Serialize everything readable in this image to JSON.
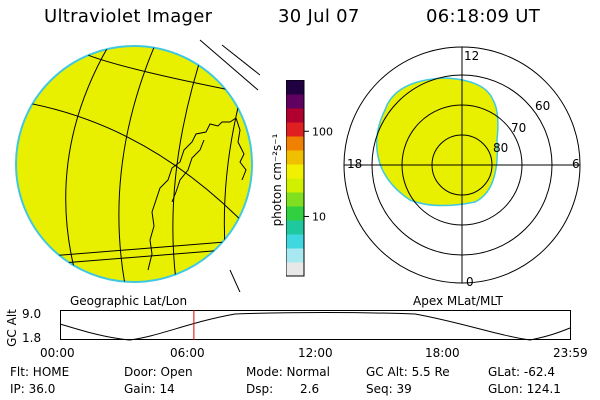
{
  "header": {
    "title": "Ultraviolet Imager",
    "date": "30 Jul 07",
    "time": "06:18:09 UT"
  },
  "geo_panel": {
    "label": "Geographic Lat/Lon",
    "fill_color": "#e8f000",
    "limb_color": "#40c8e0"
  },
  "colorbar": {
    "unit_label": "photon cm⁻²s⁻¹",
    "ticks": [
      {
        "label": "100",
        "value": 100
      },
      {
        "label": "10",
        "value": 10
      }
    ],
    "scale": "log",
    "colors": [
      "#e8e8e8",
      "#a8e8f0",
      "#40d8e0",
      "#20c8a0",
      "#30d040",
      "#80e020",
      "#d0f000",
      "#f0f000",
      "#f0c000",
      "#f08000",
      "#e02020",
      "#b00030",
      "#600060",
      "#200040"
    ]
  },
  "polar_panel": {
    "label": "Apex MLat/MLT",
    "mlt_labels": {
      "top": "12",
      "left": "18",
      "right": "6",
      "bottom": "0"
    },
    "lat_labels": [
      "60",
      "70",
      "80"
    ],
    "fill_color": "#e8f000"
  },
  "timeline": {
    "axis_label": "GC Alt",
    "y_ticks": [
      "9.0",
      "1.8"
    ],
    "x_ticks": [
      "00:00",
      "06:00",
      "12:00",
      "18:00",
      "23:59"
    ],
    "current_time_marker": "06:18",
    "marker_color": "#e00000"
  },
  "info": {
    "row1": {
      "flt": "Flt: HOME",
      "door": "Door: Open",
      "mode": "Mode: Normal",
      "gc_alt": "GC Alt: 5.5 Re",
      "glat": "GLat: -62.4"
    },
    "row2": {
      "ip": "IP: 36.0",
      "gain": "Gain: 14",
      "dsp_label": "Dsp:",
      "dsp_value": "2.6",
      "seq": "Seq: 39",
      "glon": "GLon: 124.1"
    }
  }
}
